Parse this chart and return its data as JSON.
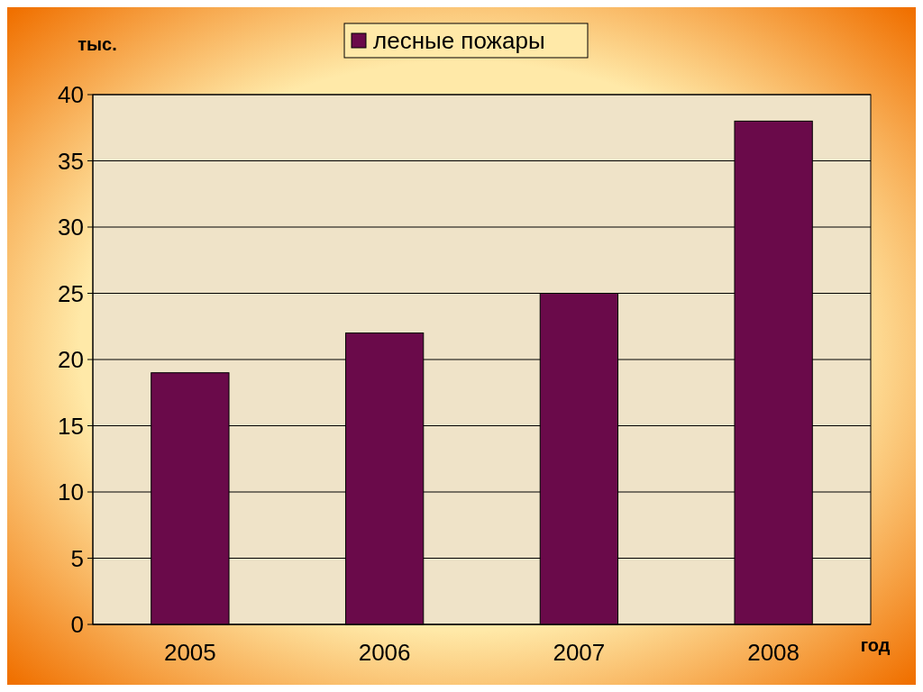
{
  "chart_data": {
    "type": "bar",
    "categories": [
      "2005",
      "2006",
      "2007",
      "2008"
    ],
    "series": [
      {
        "name": "лесные пожары",
        "color": "#6a0a4a",
        "values": [
          19,
          22,
          25,
          38
        ]
      }
    ],
    "ylabel": "тыс.",
    "xlabel": "год",
    "ylim": [
      0,
      40
    ],
    "yticks": [
      0,
      5,
      10,
      15,
      20,
      25,
      30,
      35,
      40
    ],
    "grid": "y",
    "legend": "top"
  }
}
